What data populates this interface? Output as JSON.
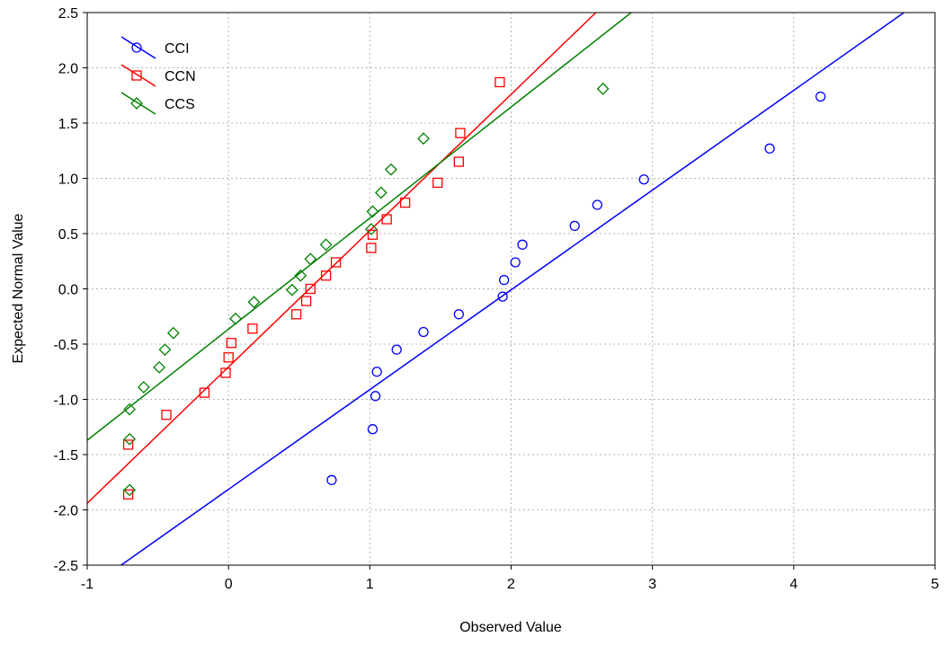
{
  "chart_data": {
    "type": "scatter",
    "title": "",
    "xlabel": "Observed Value",
    "ylabel": "Expected Normal Value",
    "xlim": [
      -1,
      5
    ],
    "ylim": [
      -2.5,
      2.5
    ],
    "x_ticks": [
      -1,
      0,
      1,
      2,
      3,
      4,
      5
    ],
    "y_ticks": [
      2.5,
      2.0,
      1.5,
      1.0,
      0.5,
      0.0,
      -0.5,
      -1.0,
      -1.5,
      -2.0,
      -2.5
    ],
    "x_tick_labels": [
      "-1",
      "0",
      "1",
      "2",
      "3",
      "4",
      "5"
    ],
    "y_tick_labels": [
      "2.5",
      "2.0",
      "1.5",
      "1.0",
      "0.5",
      "0.0",
      "-0.5",
      "-1.0",
      "-1.5",
      "-2.0",
      "-2.5"
    ],
    "grid": true,
    "legend_position": "top-left",
    "series": [
      {
        "name": "CCI",
        "color": "#0000ff",
        "marker": "circle",
        "points": [
          [
            0.73,
            -1.73
          ],
          [
            1.02,
            -1.27
          ],
          [
            1.04,
            -0.97
          ],
          [
            1.05,
            -0.75
          ],
          [
            1.19,
            -0.55
          ],
          [
            1.38,
            -0.39
          ],
          [
            1.63,
            -0.23
          ],
          [
            1.94,
            -0.07
          ],
          [
            1.95,
            0.08
          ],
          [
            2.03,
            0.24
          ],
          [
            2.08,
            0.4
          ],
          [
            2.45,
            0.57
          ],
          [
            2.61,
            0.76
          ],
          [
            2.94,
            0.99
          ],
          [
            3.83,
            1.27
          ],
          [
            4.19,
            1.74
          ]
        ],
        "fit": {
          "x1": -0.76,
          "y1": -2.5,
          "x2": 4.78,
          "y2": 2.5
        }
      },
      {
        "name": "CCN",
        "color": "#ff0000",
        "marker": "square",
        "points": [
          [
            -0.71,
            -1.86
          ],
          [
            -0.71,
            -1.41
          ],
          [
            -0.44,
            -1.14
          ],
          [
            -0.17,
            -0.94
          ],
          [
            -0.02,
            -0.76
          ],
          [
            0.0,
            -0.62
          ],
          [
            0.02,
            -0.49
          ],
          [
            0.17,
            -0.36
          ],
          [
            0.48,
            -0.23
          ],
          [
            0.55,
            -0.11
          ],
          [
            0.58,
            0.0
          ],
          [
            0.69,
            0.12
          ],
          [
            0.76,
            0.24
          ],
          [
            1.01,
            0.37
          ],
          [
            1.02,
            0.49
          ],
          [
            1.12,
            0.63
          ],
          [
            1.25,
            0.78
          ],
          [
            1.48,
            0.96
          ],
          [
            1.63,
            1.15
          ],
          [
            1.64,
            1.41
          ],
          [
            1.92,
            1.87
          ]
        ],
        "fit": {
          "x1": -1.0,
          "y1": -1.94,
          "x2": 2.6,
          "y2": 2.5
        }
      },
      {
        "name": "CCS",
        "color": "#008000",
        "marker": "diamond",
        "points": [
          [
            -0.7,
            -1.82
          ],
          [
            -0.7,
            -1.36
          ],
          [
            -0.7,
            -1.09
          ],
          [
            -0.6,
            -0.89
          ],
          [
            -0.49,
            -0.71
          ],
          [
            -0.45,
            -0.55
          ],
          [
            -0.39,
            -0.4
          ],
          [
            0.05,
            -0.27
          ],
          [
            0.18,
            -0.12
          ],
          [
            0.45,
            -0.01
          ],
          [
            0.51,
            0.12
          ],
          [
            0.58,
            0.27
          ],
          [
            0.69,
            0.4
          ],
          [
            1.01,
            0.54
          ],
          [
            1.02,
            0.7
          ],
          [
            1.08,
            0.87
          ],
          [
            1.15,
            1.08
          ],
          [
            1.38,
            1.36
          ],
          [
            2.65,
            1.81
          ]
        ],
        "fit": {
          "x1": -1.0,
          "y1": -1.37,
          "x2": 2.85,
          "y2": 2.5
        }
      }
    ]
  }
}
